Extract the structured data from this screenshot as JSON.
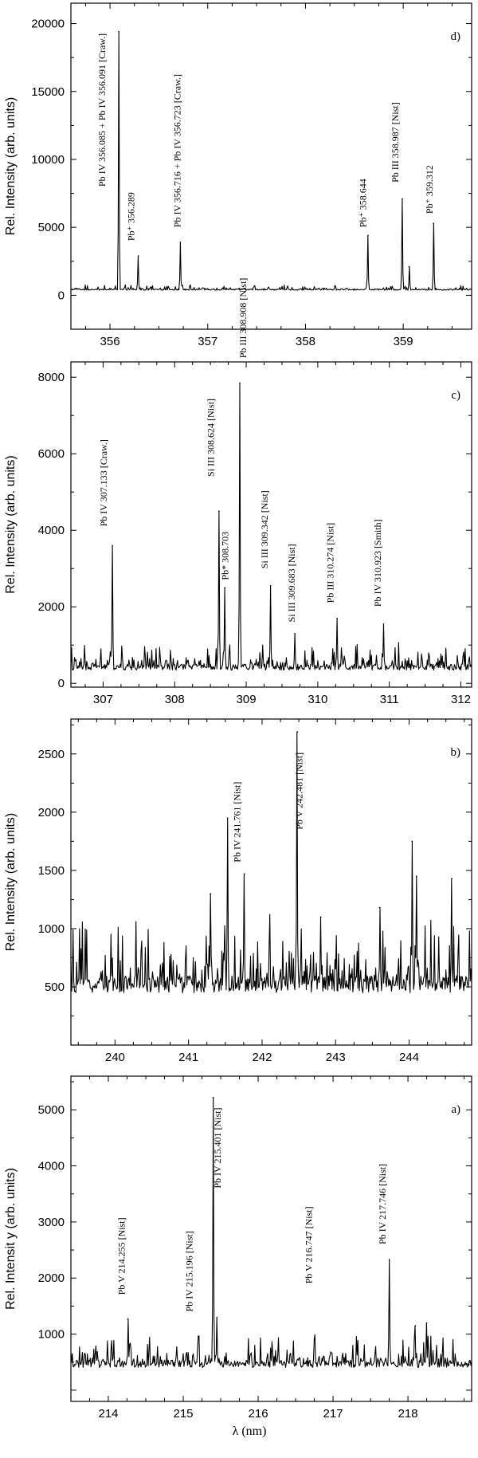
{
  "figure": {
    "xlabel": "λ (nm)"
  },
  "chart_data": [
    {
      "panel": "d)",
      "type": "line",
      "ylabel": "Rel. Intensity  (arb. units)",
      "xlim": [
        355.6,
        359.7
      ],
      "ylim": [
        -2500,
        21500
      ],
      "xticks": [
        356,
        357,
        358,
        359
      ],
      "yticks": [
        0,
        5000,
        10000,
        15000,
        20000
      ],
      "baseline": 400,
      "noise": 250,
      "peaks": [
        {
          "x": 356.09,
          "y": 19400
        },
        {
          "x": 356.29,
          "y": 2900
        },
        {
          "x": 356.72,
          "y": 3900
        },
        {
          "x": 358.64,
          "y": 4400
        },
        {
          "x": 358.99,
          "y": 7100
        },
        {
          "x": 359.06,
          "y": 2100
        },
        {
          "x": 359.31,
          "y": 5300
        }
      ],
      "annotations": [
        {
          "text": "Pb IV 356.085 + Pb IV 356.091 [Craw.]",
          "x": 355.95,
          "y": 8000
        },
        {
          "text": "Pb⁺ 356.289",
          "x": 356.25,
          "y": 4000
        },
        {
          "text": "Pb IV 356.716 + Pb IV 356.723 [Craw.]",
          "x": 356.72,
          "y": 5000
        },
        {
          "text": "Pb⁺ 358.644",
          "x": 358.62,
          "y": 5000
        },
        {
          "text": "Pb III 358.987 [Nist]",
          "x": 358.95,
          "y": 8300
        },
        {
          "text": "Pb⁺ 359.312",
          "x": 359.3,
          "y": 6000
        }
      ]
    },
    {
      "panel": "c)",
      "type": "line",
      "ylabel": "Rel. Intensity  (arb. units)",
      "xlim": [
        306.55,
        312.15
      ],
      "ylim": [
        -100,
        8400
      ],
      "xticks": [
        307,
        308,
        309,
        310,
        311,
        312
      ],
      "yticks": [
        0,
        2000,
        4000,
        6000,
        8000
      ],
      "baseline": 400,
      "noise": 450,
      "peaks": [
        {
          "x": 307.13,
          "y": 3600
        },
        {
          "x": 308.62,
          "y": 4500
        },
        {
          "x": 308.7,
          "y": 2500
        },
        {
          "x": 308.91,
          "y": 7850
        },
        {
          "x": 309.34,
          "y": 2550
        },
        {
          "x": 309.68,
          "y": 1300
        },
        {
          "x": 310.27,
          "y": 1700
        },
        {
          "x": 310.92,
          "y": 1550
        }
      ],
      "annotations": [
        {
          "text": "Pb IV 307.133 [Craw.]",
          "x": 307.05,
          "y": 4100
        },
        {
          "text": "Si III 308.624 [Nist]",
          "x": 308.55,
          "y": 5400
        },
        {
          "text": "Pb* 308.703",
          "x": 308.75,
          "y": 2700
        },
        {
          "text": "Pb III  308.908 [Nist]",
          "x": 309.0,
          "y": 8500
        },
        {
          "text": "Si III 309.342 [Nist]",
          "x": 309.3,
          "y": 3000
        },
        {
          "text": "Si III 309.683 [Nist]",
          "x": 309.68,
          "y": 1600
        },
        {
          "text": "Pb III 310.274 [Nist]",
          "x": 310.22,
          "y": 2100
        },
        {
          "text": "Pb IV 310.923 [Smith]",
          "x": 310.88,
          "y": 2000
        }
      ]
    },
    {
      "panel": "b)",
      "type": "line",
      "ylabel": "Rel. Intensity  (arb. units)",
      "xlim": [
        239.4,
        244.85
      ],
      "ylim": [
        0,
        2800
      ],
      "xticks": [
        240,
        241,
        242,
        243,
        244
      ],
      "yticks": [
        500,
        1000,
        1500,
        2000,
        2500
      ],
      "baseline": 500,
      "noise": 420,
      "peaks": [
        {
          "x": 241.3,
          "y": 1300
        },
        {
          "x": 241.53,
          "y": 1950
        },
        {
          "x": 241.76,
          "y": 1470
        },
        {
          "x": 242.48,
          "y": 2690
        },
        {
          "x": 242.8,
          "y": 1100
        },
        {
          "x": 243.6,
          "y": 1180
        },
        {
          "x": 244.04,
          "y": 1750
        },
        {
          "x": 244.1,
          "y": 1450
        },
        {
          "x": 244.58,
          "y": 1430
        }
      ],
      "annotations": [
        {
          "text": "Pb IV 241.761 [Nist]",
          "x": 241.7,
          "y": 1570
        },
        {
          "text": "Pb V 242.481 [Nist]",
          "x": 242.55,
          "y": 1850
        }
      ]
    },
    {
      "panel": "a)",
      "type": "line",
      "ylabel": "Rel. Intensit y (arb. units)",
      "xlim": [
        213.5,
        218.85
      ],
      "ylim": [
        -200,
        5600
      ],
      "xticks": [
        214,
        215,
        216,
        217,
        218
      ],
      "yticks": [
        1000,
        2000,
        3000,
        4000,
        5000
      ],
      "baseline": 450,
      "noise": 380,
      "peaks": [
        {
          "x": 214.26,
          "y": 1270
        },
        {
          "x": 215.2,
          "y": 960
        },
        {
          "x": 215.4,
          "y": 5220
        },
        {
          "x": 215.45,
          "y": 1300
        },
        {
          "x": 216.75,
          "y": 900
        },
        {
          "x": 217.75,
          "y": 2330
        },
        {
          "x": 218.1,
          "y": 1150
        },
        {
          "x": 218.25,
          "y": 1200
        }
      ],
      "annotations": [
        {
          "text": "Pb V 214.255 [Nist]",
          "x": 214.22,
          "y": 1700
        },
        {
          "text": "Pb IV 215.196 [Nist]",
          "x": 215.12,
          "y": 1400
        },
        {
          "text": "Pb IV 215.401 [Nist]",
          "x": 215.5,
          "y": 3600
        },
        {
          "text": "Pb V 216.747 [Nist]",
          "x": 216.72,
          "y": 1900
        },
        {
          "text": "Pb IV 217.746 [Nist]",
          "x": 217.7,
          "y": 2600
        }
      ]
    }
  ]
}
